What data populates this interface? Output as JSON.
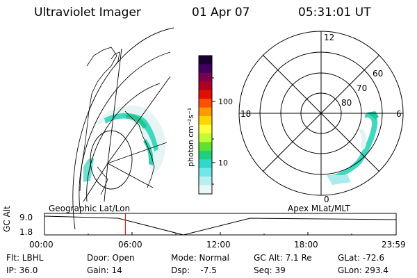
{
  "header": {
    "title": "Ultraviolet Imager",
    "date": "01 Apr 07",
    "time": "05:31:01 UT"
  },
  "colorbar": {
    "unit_label": "photon cm⁻²s⁻¹",
    "ticks": [
      "100",
      "10"
    ],
    "scale": "log",
    "colors_top_to_bottom": [
      "#1a0033",
      "#400060",
      "#7a0050",
      "#b00020",
      "#e01000",
      "#ff5000",
      "#ff9a00",
      "#ffd700",
      "#ffff40",
      "#c0ff30",
      "#60e030",
      "#20d080",
      "#30d8c8",
      "#70e8e8",
      "#b8f0f0",
      "#e8f8f8"
    ]
  },
  "polar": {
    "top": "12",
    "left": "18",
    "right": "6",
    "bottom": "0",
    "lat_labels": [
      "60",
      "70",
      "80"
    ]
  },
  "timeline": {
    "left_label": "Geographic Lat/Lon",
    "right_label": "Apex MLat/MLT",
    "y_axis_title": "GC Alt",
    "y_top": "9.0",
    "y_bottom": "1.8",
    "x_ticks": [
      "00:00",
      "06:00",
      "12:00",
      "18:00",
      "23:59"
    ],
    "current_time_fraction": 0.23
  },
  "info": {
    "row1": {
      "flt": "Flt: LBHL",
      "door": "Door: Open",
      "mode": "Mode: Normal",
      "gc_alt": "GC Alt: 7.1 Re",
      "glat": "GLat: -72.6"
    },
    "row2": {
      "ip": "IP: 36.0",
      "gain": "Gain: 14",
      "dsp": "Dsp:    -7.5",
      "seq": "Seq: 39",
      "glon": "GLon: 293.4"
    }
  }
}
